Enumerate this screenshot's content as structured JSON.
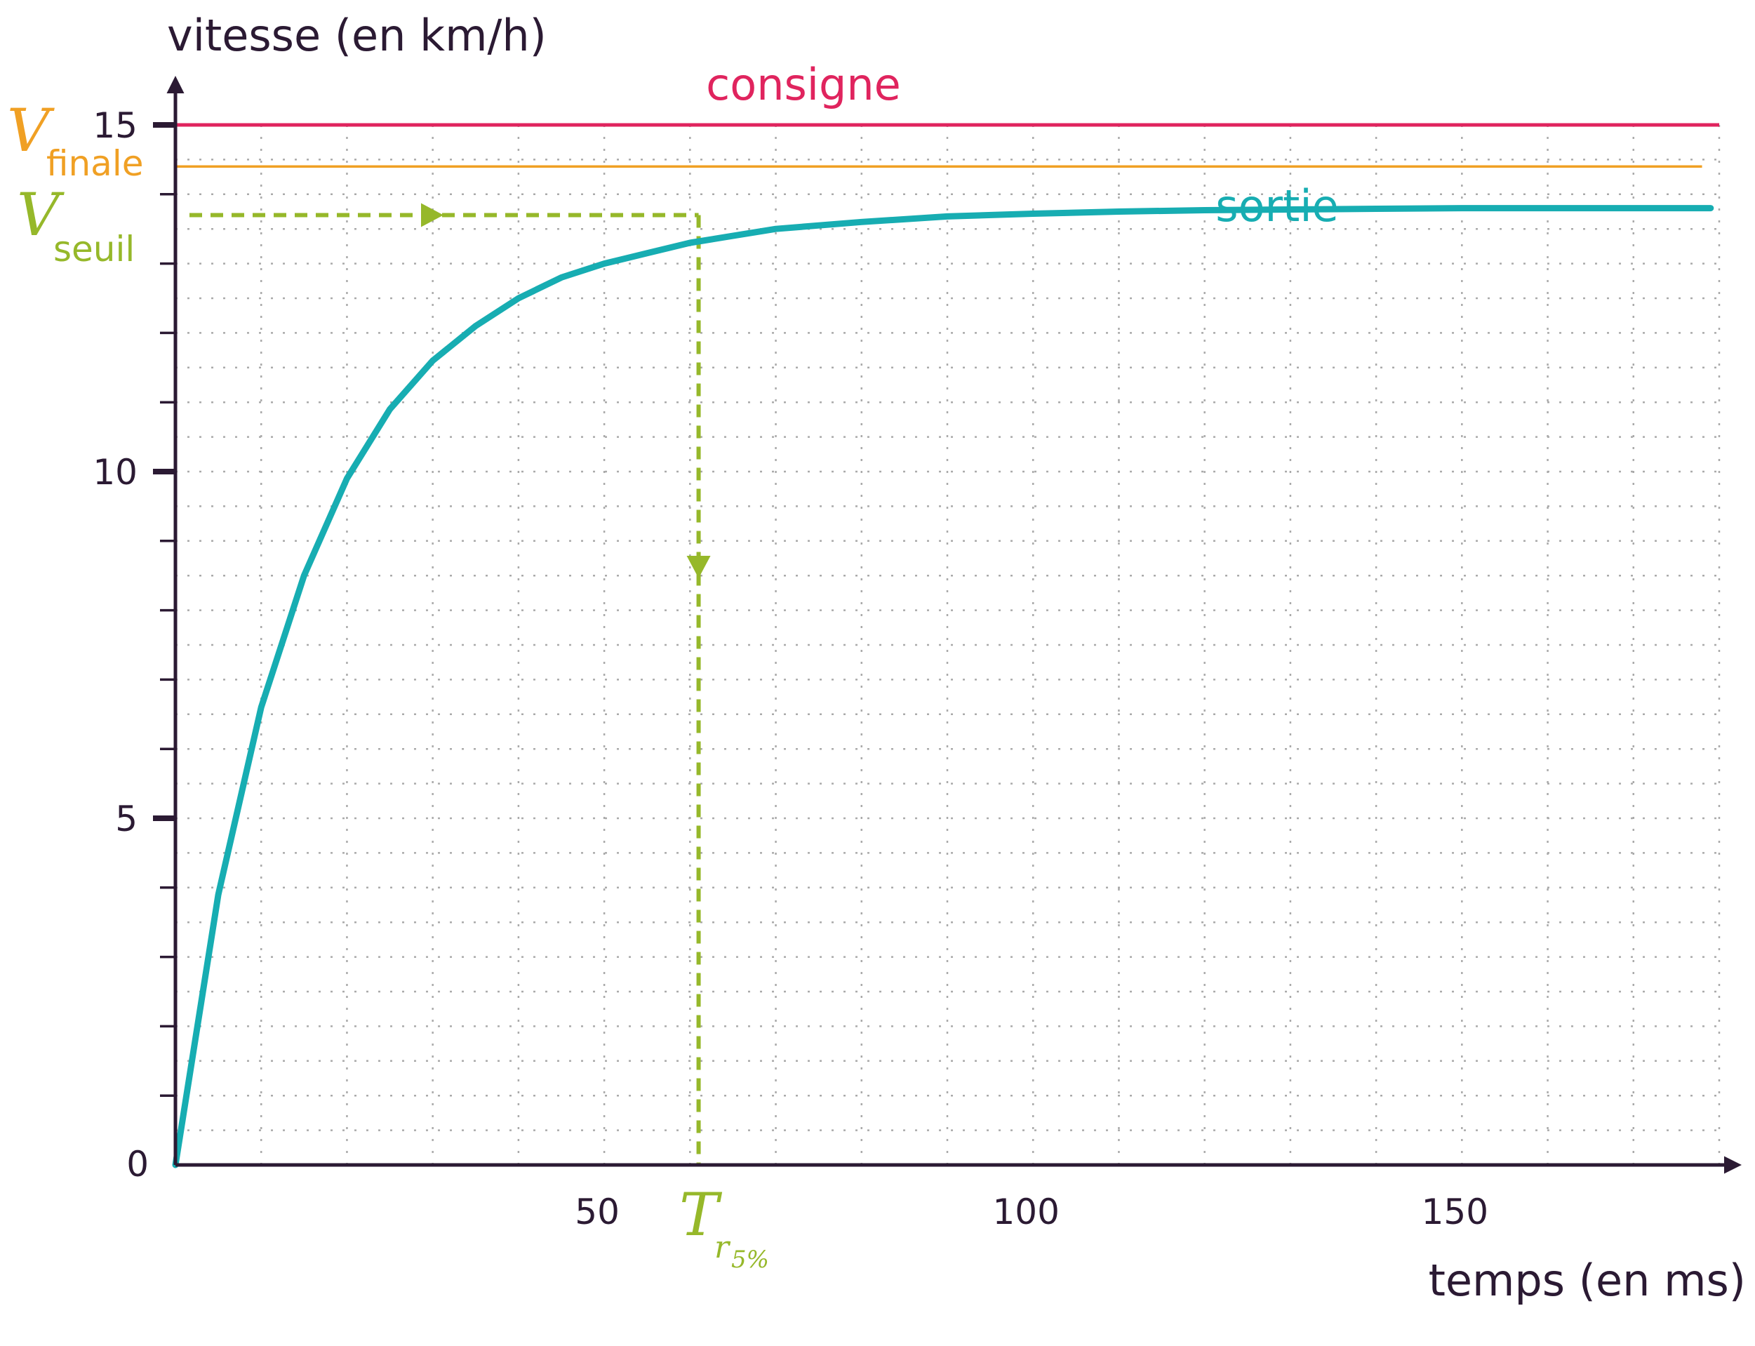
{
  "chart_data": {
    "type": "line",
    "title": "",
    "ylabel": "vitesse (en km/h)",
    "xlabel": "temps (en ms)",
    "xlim": [
      0,
      180
    ],
    "ylim": [
      0,
      15
    ],
    "grid": true,
    "x_ticks_labeled": [
      50,
      100,
      150
    ],
    "y_ticks_labeled": [
      0,
      5,
      10,
      15
    ],
    "x_tick_labels": [
      "50",
      "100",
      "150"
    ],
    "y_tick_labels": [
      "0",
      "5",
      "10",
      "15"
    ],
    "series": [
      {
        "name": "consigne",
        "color": "#e0245e",
        "x": [
          0,
          180
        ],
        "y": [
          15,
          15
        ]
      },
      {
        "name": "sortie",
        "color": "#17adb2",
        "x": [
          0,
          5,
          10,
          15,
          20,
          25,
          30,
          35,
          40,
          45,
          50,
          55,
          60,
          65,
          70,
          80,
          90,
          100,
          110,
          120,
          130,
          140,
          150,
          160,
          170,
          179
        ],
        "y": [
          0,
          3.9,
          6.6,
          8.5,
          9.9,
          10.9,
          11.6,
          12.1,
          12.5,
          12.8,
          13.0,
          13.15,
          13.3,
          13.4,
          13.5,
          13.6,
          13.68,
          13.72,
          13.75,
          13.77,
          13.78,
          13.79,
          13.8,
          13.8,
          13.8,
          13.8
        ]
      }
    ],
    "annotations": {
      "v_finale": {
        "value": 14.4,
        "color": "#f0a024",
        "label_main": "V",
        "label_sub": "finale"
      },
      "v_seuil": {
        "value": 13.7,
        "color": "#96b82a",
        "label_main": "V",
        "label_sub": "seuil"
      },
      "t_r5": {
        "value": 61,
        "color": "#96b82a",
        "label_main": "T",
        "label_sub": "r",
        "label_subsub": "5%"
      }
    }
  }
}
